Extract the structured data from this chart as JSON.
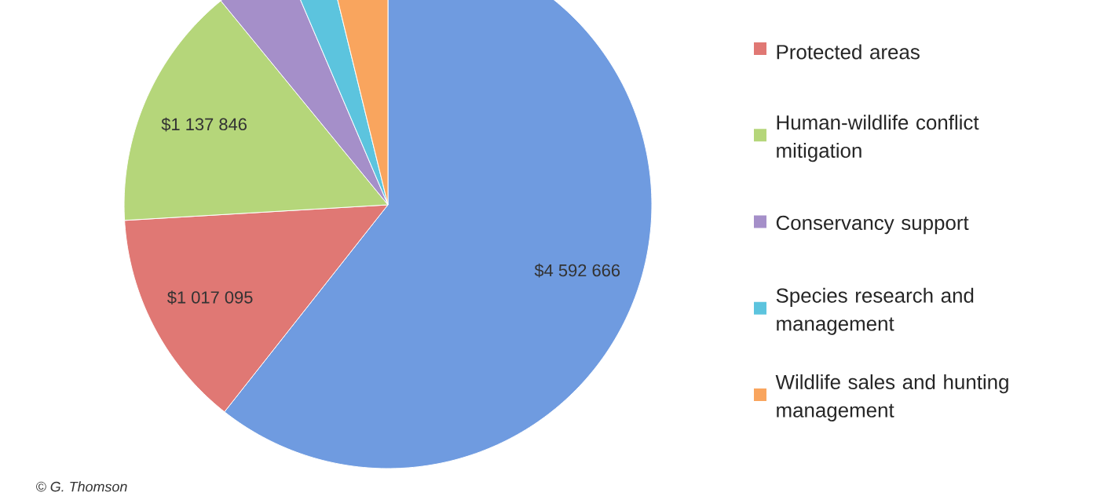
{
  "chart_data": {
    "type": "pie",
    "categories": [
      null,
      "Protected areas",
      "Human-wildlife conflict mitigation",
      "Conservancy support",
      "Species research and management",
      "Wildlife sales and hunting management"
    ],
    "values": [
      4592666,
      1017095,
      1137846,
      341000,
      196000,
      290000
    ],
    "value_labels": [
      "$4 592 666",
      "$1 017 095",
      "$1 137 846",
      null,
      null,
      null
    ],
    "colors": [
      "#6f9be0",
      "#e07874",
      "#b5d67a",
      "#a58fc9",
      "#5cc4de",
      "#f9a55e"
    ],
    "legend": "right",
    "annotations": [
      "© G. Thomson"
    ]
  }
}
